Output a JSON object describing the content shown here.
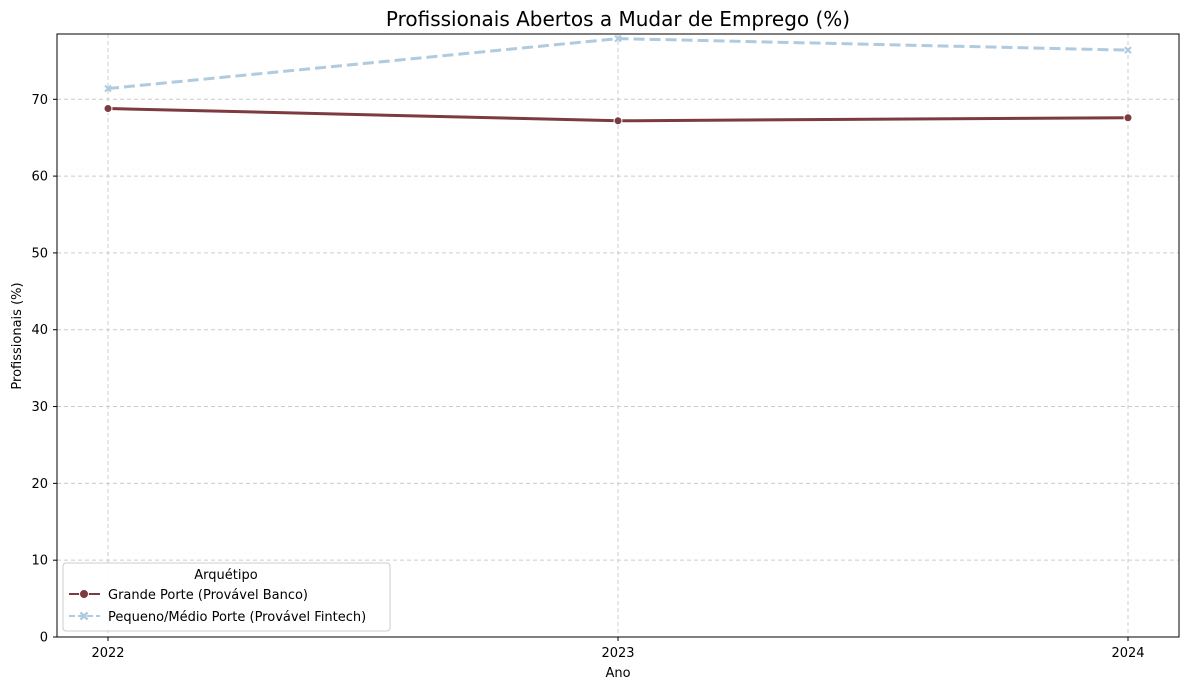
{
  "chart_data": {
    "type": "line",
    "title": "Profissionais Abertos a Mudar de Emprego (%)",
    "xlabel": "Ano",
    "ylabel": "Profissionais (%)",
    "x": [
      "2022",
      "2023",
      "2024"
    ],
    "ylim": [
      0,
      78.5
    ],
    "yticks": [
      0,
      10,
      20,
      30,
      40,
      50,
      60,
      70
    ],
    "grid": true,
    "legend": {
      "title": "Arquétipo",
      "placement": "lower-left"
    },
    "series": [
      {
        "name": "Grande Porte (Provável Banco)",
        "values": [
          68.8,
          67.2,
          67.6
        ],
        "color": "#7b3b3f",
        "style": "solid",
        "marker": "circle"
      },
      {
        "name": "Pequeno/Médio Porte (Provável Fintech)",
        "values": [
          71.4,
          77.9,
          76.4
        ],
        "color": "#aecbe0",
        "style": "dashed",
        "marker": "x"
      }
    ]
  }
}
